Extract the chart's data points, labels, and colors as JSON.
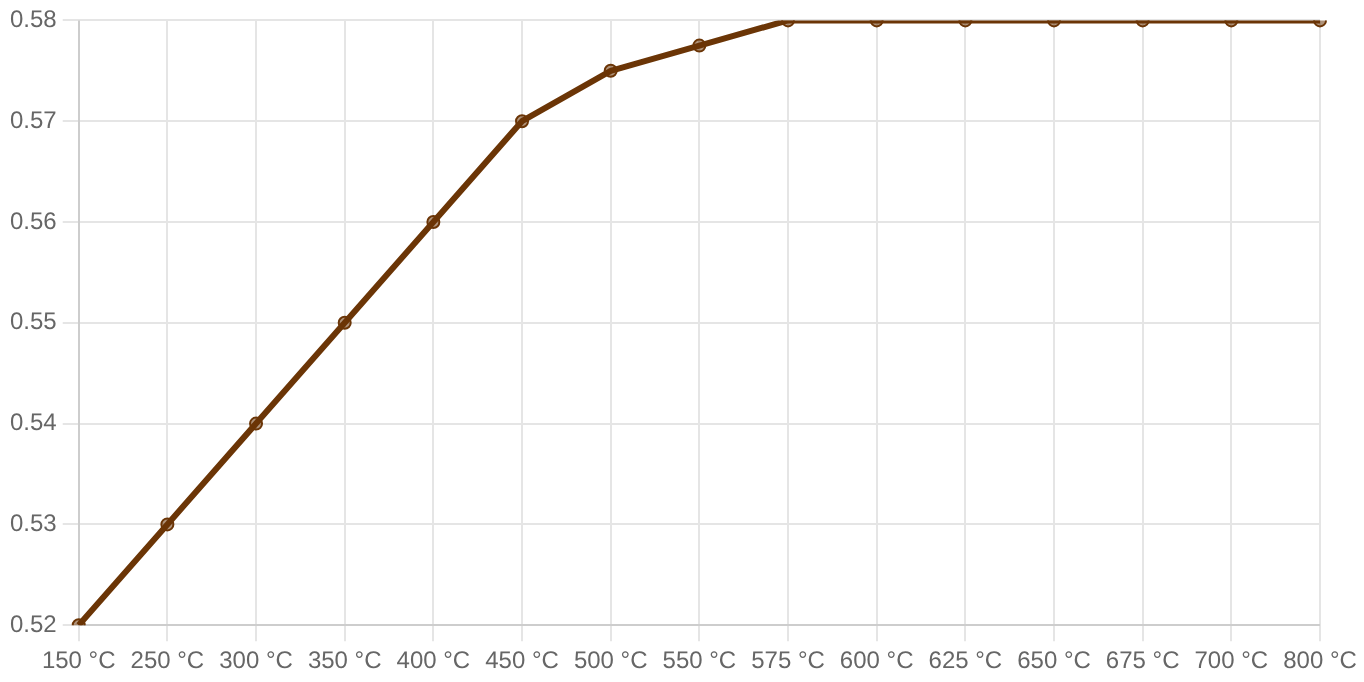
{
  "chart_data": {
    "type": "line",
    "categories": [
      "150 °C",
      "250 °C",
      "300 °C",
      "350 °C",
      "400 °C",
      "450 °C",
      "500 °C",
      "550 °C",
      "575 °C",
      "600 °C",
      "625 °C",
      "650 °C",
      "675 °C",
      "700 °C",
      "800 °C"
    ],
    "series": [
      {
        "color": "#6b3506",
        "values": [
          0.52,
          0.53,
          0.54,
          0.55,
          0.56,
          0.57,
          0.575,
          0.5775,
          0.58,
          0.58,
          0.58,
          0.58,
          0.58,
          0.58,
          0.58
        ]
      }
    ],
    "ylim": [
      0.52,
      0.58
    ],
    "yticks": [
      0.52,
      0.53,
      0.54,
      0.55,
      0.56,
      0.57,
      0.58
    ],
    "grid": true,
    "legend": false,
    "marker": "circle",
    "line_style": "solid"
  }
}
